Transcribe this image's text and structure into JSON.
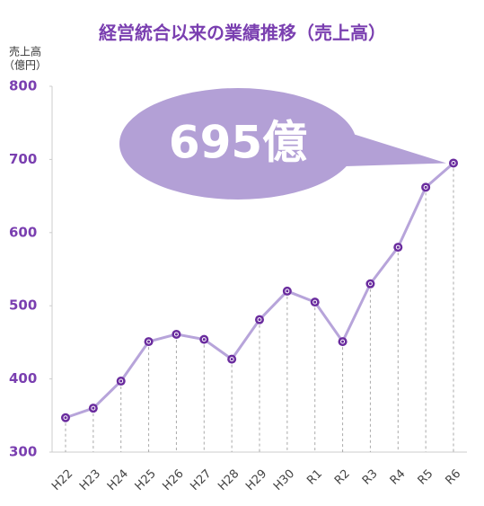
{
  "chart_data": {
    "type": "line",
    "title": "経営統合以来の業績推移（売上高）",
    "y_label": "売上高",
    "y_unit": "（億円）",
    "annotation": "695億",
    "categories": [
      "H22",
      "H23",
      "H24",
      "H25",
      "H26",
      "H27",
      "H28",
      "H29",
      "H30",
      "R1",
      "R2",
      "R3",
      "R4",
      "R5",
      "R6"
    ],
    "values": [
      347,
      360,
      397,
      451,
      461,
      454,
      427,
      481,
      520,
      505,
      451,
      530,
      580,
      662,
      695
    ],
    "color": "#b7a4da",
    "marker_color": "#6a2c9e",
    "ylim": [
      300,
      800
    ],
    "yticks": [
      300,
      400,
      500,
      600,
      700,
      800
    ],
    "drop_lines": true
  }
}
